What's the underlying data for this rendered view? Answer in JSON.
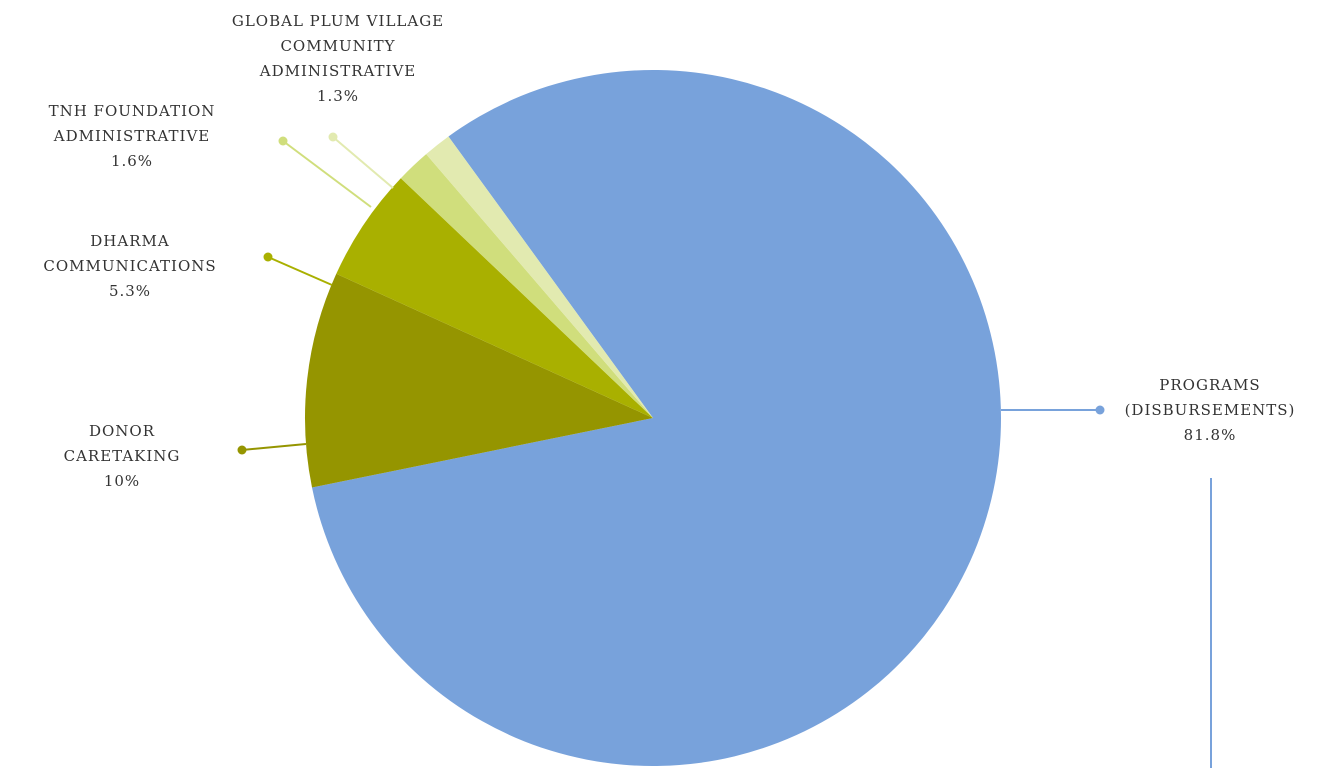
{
  "chart_data": {
    "type": "pie",
    "title": "",
    "slices": [
      {
        "label_lines": [
          "PROGRAMS",
          "(DISBURSEMENTS)"
        ],
        "value": 81.8,
        "value_label": "81.8%",
        "color": "#78a2db"
      },
      {
        "label_lines": [
          "DONOR",
          "CARETAKING"
        ],
        "value": 10,
        "value_label": "10%",
        "color": "#959500"
      },
      {
        "label_lines": [
          "DHARMA",
          "COMMUNICATIONS"
        ],
        "value": 5.3,
        "value_label": "5.3%",
        "color": "#a9b000"
      },
      {
        "label_lines": [
          "TNH FOUNDATION",
          "ADMINISTRATIVE"
        ],
        "value": 1.6,
        "value_label": "1.6%",
        "color": "#d0de7c"
      },
      {
        "label_lines": [
          "GLOBAL PLUM VILLAGE",
          "COMMUNITY",
          "ADMINISTRATIVE"
        ],
        "value": 1.3,
        "value_label": "1.3%",
        "color": "#e2eab0"
      }
    ]
  }
}
